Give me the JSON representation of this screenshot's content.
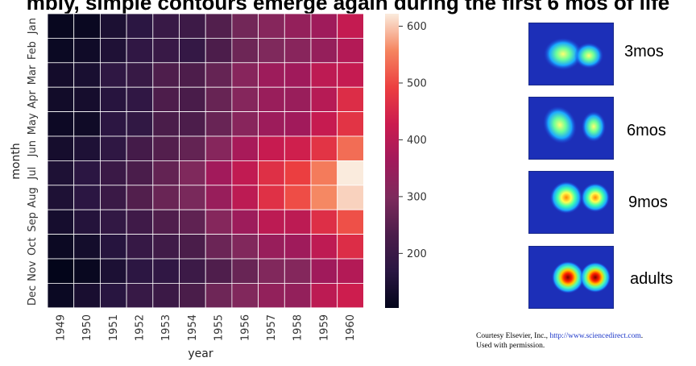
{
  "header": {
    "title": "mbly, simple contours emerge again during the first 6 mos of life"
  },
  "chart_data": {
    "type": "heatmap",
    "title": "",
    "xlabel": "year",
    "ylabel": "month",
    "x_categories": [
      "1949",
      "1950",
      "1951",
      "1952",
      "1953",
      "1954",
      "1955",
      "1956",
      "1957",
      "1958",
      "1959",
      "1960"
    ],
    "y_categories": [
      "Jan",
      "Feb",
      "Mar",
      "Apr",
      "May",
      "Jun",
      "Jul",
      "Aug",
      "Sep",
      "Oct",
      "Nov",
      "Dec"
    ],
    "values": [
      [
        112,
        115,
        145,
        171,
        196,
        204,
        242,
        284,
        315,
        340,
        360,
        417
      ],
      [
        118,
        126,
        150,
        180,
        196,
        188,
        233,
        277,
        301,
        318,
        342,
        391
      ],
      [
        132,
        141,
        178,
        193,
        236,
        235,
        267,
        317,
        356,
        362,
        406,
        419
      ],
      [
        129,
        135,
        163,
        181,
        235,
        227,
        269,
        313,
        348,
        348,
        396,
        461
      ],
      [
        121,
        125,
        172,
        183,
        229,
        234,
        270,
        318,
        355,
        363,
        420,
        472
      ],
      [
        135,
        149,
        178,
        218,
        243,
        264,
        315,
        374,
        422,
        435,
        472,
        535
      ],
      [
        148,
        170,
        199,
        230,
        264,
        302,
        364,
        413,
        465,
        491,
        548,
        622
      ],
      [
        148,
        170,
        199,
        242,
        272,
        293,
        347,
        405,
        467,
        505,
        559,
        606
      ],
      [
        136,
        158,
        184,
        209,
        237,
        259,
        312,
        355,
        404,
        404,
        463,
        508
      ],
      [
        119,
        133,
        162,
        191,
        211,
        229,
        274,
        306,
        347,
        359,
        407,
        461
      ],
      [
        104,
        114,
        146,
        172,
        180,
        203,
        237,
        271,
        305,
        310,
        362,
        390
      ],
      [
        118,
        140,
        166,
        194,
        201,
        229,
        278,
        306,
        336,
        337,
        405,
        432
      ]
    ],
    "colorbar": {
      "min": 104,
      "max": 622,
      "ticks": [
        200,
        300,
        400,
        500,
        600
      ]
    },
    "colormap": "rocket",
    "grid": false
  },
  "side_figure": {
    "panels": [
      {
        "label": "3mos"
      },
      {
        "label": "6mos"
      },
      {
        "label": "9mos"
      },
      {
        "label": "adults"
      }
    ],
    "credit": {
      "prefix": "Courtesy Elsevier, Inc., ",
      "link": "http://www.sciencedirect.com",
      "suffix": ".",
      "line2": "Used with permission."
    }
  }
}
